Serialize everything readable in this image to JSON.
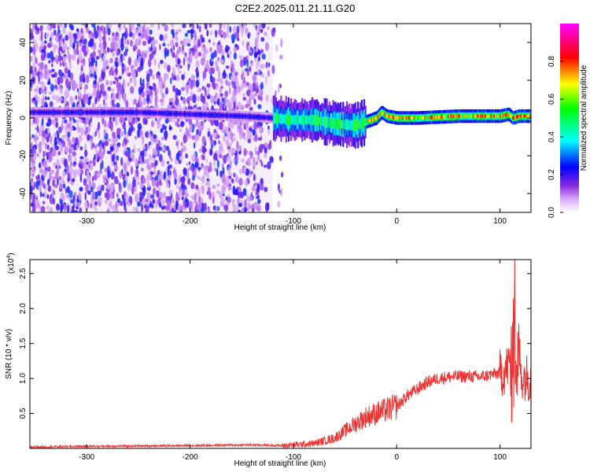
{
  "figure": {
    "title": "C2E2.2025.011.21.11.G20"
  },
  "chart_data": [
    {
      "type": "heatmap",
      "xlabel": "Height of straight line (km)",
      "ylabel": "Frequency (Hz)",
      "xlim": [
        -355,
        130
      ],
      "ylim": [
        -50,
        50
      ],
      "xticks": [
        -300,
        -200,
        -100,
        0,
        100
      ],
      "yticks": [
        -40,
        -20,
        0,
        20,
        40
      ],
      "grid": false,
      "colorbar": {
        "label": "Normalized spectral amplitude",
        "range": [
          0,
          1
        ],
        "ticks": [
          0.0,
          0.2,
          0.4,
          0.6,
          0.8
        ],
        "colors": [
          "#ffffff",
          "#8a2be2",
          "#0000ff",
          "#00ffff",
          "#00ff00",
          "#ffff00",
          "#ff0000",
          "#ff00ff"
        ]
      },
      "ridge": {
        "x": [
          -355,
          -250,
          -200,
          -150,
          -120,
          -100,
          -80,
          -60,
          -40,
          -30,
          -20,
          -15,
          -10,
          0,
          20,
          60,
          100,
          108,
          112,
          118,
          130
        ],
        "y": [
          3,
          3,
          2,
          1,
          0,
          -1,
          -1,
          -3,
          -4,
          -2,
          0,
          3,
          1,
          0,
          0,
          1,
          1,
          2,
          0,
          1,
          1
        ]
      }
    },
    {
      "type": "line",
      "xlabel": "Height of straight line (km)",
      "ylabel": "SNR (10 * v/v)",
      "y_multiplier": "(x10",
      "y_multiplier_exp": "4",
      "y_multiplier_close": ")",
      "xlim": [
        -355,
        130
      ],
      "ylim": [
        0,
        2.7
      ],
      "xticks": [
        -300,
        -200,
        -100,
        0,
        100
      ],
      "yticks": [
        0.5,
        1.0,
        1.5,
        2.0,
        2.5
      ],
      "grid": false,
      "series": [
        {
          "color": "#ee3333",
          "x": [
            -355,
            -300,
            -200,
            -140,
            -110,
            -80,
            -60,
            -50,
            -40,
            -30,
            -20,
            -10,
            0,
            10,
            20,
            30,
            40,
            50,
            60,
            70,
            80,
            90,
            100,
            105,
            110,
            115,
            120,
            130
          ],
          "y": [
            0.02,
            0.03,
            0.04,
            0.05,
            0.04,
            0.07,
            0.15,
            0.25,
            0.35,
            0.45,
            0.5,
            0.55,
            0.6,
            0.75,
            0.85,
            0.95,
            1.0,
            1.02,
            1.03,
            1.03,
            1.02,
            1.05,
            1.08,
            1.1,
            1.25,
            2.6,
            1.05,
            1.0
          ]
        }
      ]
    }
  ]
}
